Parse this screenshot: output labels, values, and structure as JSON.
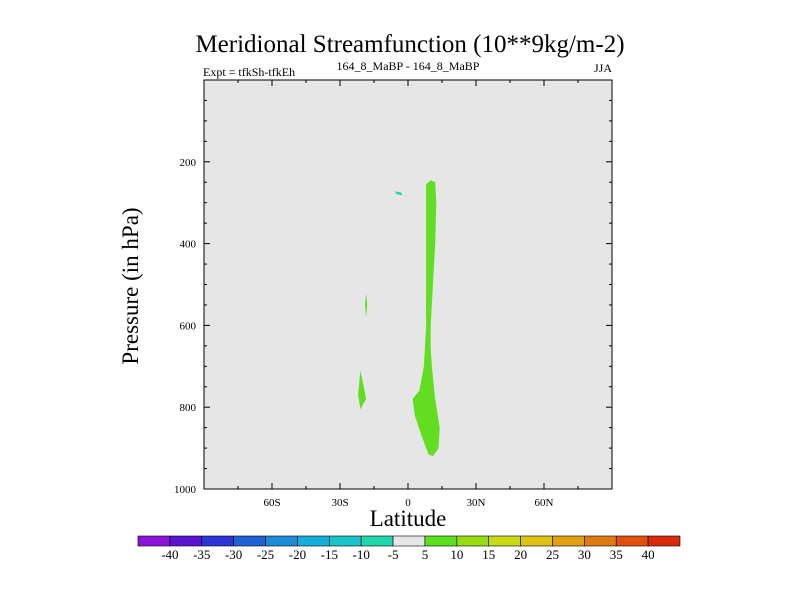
{
  "chart_data": {
    "type": "contour",
    "title": "Meridional Streamfunction (10**9kg/m-2)",
    "left_subtitle": "Expt = tfkSh-tfkEh",
    "center_subtitle": "164_8_MaBP - 164_8_MaBP",
    "right_subtitle": "JJA",
    "xlabel": "Latitude",
    "ylabel": "Pressure (in hPa)",
    "xlim": [
      -90,
      90
    ],
    "ylim": [
      0,
      1000
    ],
    "x_ticks": [
      {
        "value": -60,
        "label": "60S"
      },
      {
        "value": -30,
        "label": "30S"
      },
      {
        "value": 0,
        "label": "0"
      },
      {
        "value": 30,
        "label": "30N"
      },
      {
        "value": 60,
        "label": "60N"
      }
    ],
    "y_ticks": [
      {
        "value": 200,
        "label": "200"
      },
      {
        "value": 400,
        "label": "400"
      },
      {
        "value": 600,
        "label": "600"
      },
      {
        "value": 800,
        "label": "800"
      },
      {
        "value": 1000,
        "label": "1000"
      }
    ],
    "background_fill": "#e6e6e6",
    "colorbar": {
      "labels": [
        "-40",
        "-35",
        "-30",
        "-25",
        "-20",
        "-15",
        "-10",
        "-5",
        "5",
        "10",
        "15",
        "20",
        "25",
        "30",
        "35",
        "40"
      ],
      "colors": [
        "#8c14d9",
        "#5a14d2",
        "#2c36d4",
        "#1f63d6",
        "#1b8cd6",
        "#14aed8",
        "#1ac4c8",
        "#1fd6ad",
        "#e6e6e6",
        "#5ce01e",
        "#98dc14",
        "#c8d814",
        "#dcc214",
        "#e0a012",
        "#e07a12",
        "#e05010",
        "#da2a0e"
      ]
    },
    "regions": [
      {
        "name": "positive-10-main",
        "color": "#62de22",
        "points": [
          [
            8,
            255
          ],
          [
            10,
            245
          ],
          [
            12,
            250
          ],
          [
            12.5,
            300
          ],
          [
            12,
            400
          ],
          [
            10.5,
            550
          ],
          [
            10,
            600
          ],
          [
            10,
            650
          ],
          [
            10.5,
            700
          ],
          [
            12,
            780
          ],
          [
            14,
            850
          ],
          [
            13.5,
            900
          ],
          [
            11,
            920
          ],
          [
            9,
            915
          ],
          [
            6,
            870
          ],
          [
            3,
            820
          ],
          [
            2,
            780
          ],
          [
            5,
            760
          ],
          [
            7,
            700
          ],
          [
            8,
            600
          ],
          [
            8,
            450
          ],
          [
            8,
            300
          ]
        ]
      },
      {
        "name": "positive-10-small",
        "color": "#62de22",
        "points": [
          [
            -21,
            710
          ],
          [
            -19.5,
            750
          ],
          [
            -18.5,
            780
          ],
          [
            -21,
            805
          ],
          [
            -22,
            770
          ]
        ]
      },
      {
        "name": "positive-10-sliver",
        "color": "#62de22",
        "points": [
          [
            -18.5,
            520
          ],
          [
            -18,
            550
          ],
          [
            -18.5,
            580
          ],
          [
            -19,
            550
          ]
        ]
      },
      {
        "name": "negative-minus5-blob",
        "color": "#1fd6ad",
        "points": [
          [
            -5.5,
            272
          ],
          [
            -3,
            275
          ],
          [
            -2.5,
            282
          ],
          [
            -4.5,
            280
          ],
          [
            -5.5,
            277
          ]
        ]
      }
    ]
  }
}
